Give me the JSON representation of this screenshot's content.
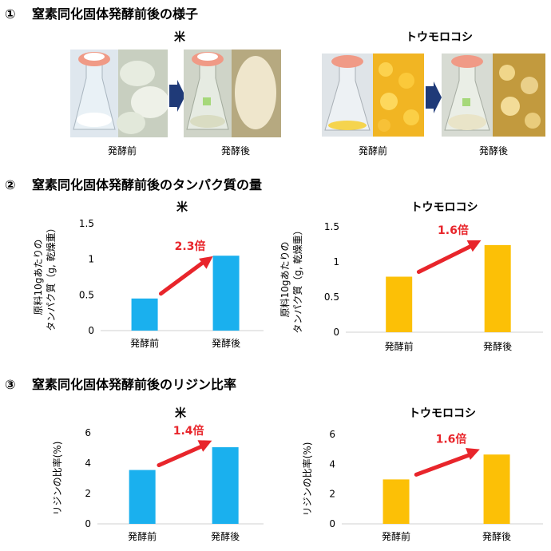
{
  "sections": [
    {
      "num": "①",
      "title": "窒素同化固体発酵前後の様子"
    },
    {
      "num": "②",
      "title": "窒素同化固体発酵前後のタンパク質の量"
    },
    {
      "num": "③",
      "title": "窒素同化固体発酵前後のリジン比率"
    }
  ],
  "photos": {
    "rice_title": "米",
    "corn_title": "トウモロコシ",
    "before_label": "発酵前",
    "after_label": "発酵後"
  },
  "chart_data": [
    {
      "id": "protein-rice",
      "type": "bar",
      "title": "米",
      "categories": [
        "発酵前",
        "発酵後"
      ],
      "values": [
        0.45,
        1.05
      ],
      "ylabel_lines": [
        "原料10gあたりの",
        "タンパク質（g, 乾燥重）"
      ],
      "ylim": [
        0,
        1.5
      ],
      "yticks": [
        "0",
        "0.5",
        "1",
        "1.5"
      ],
      "ytick_values": [
        0,
        0.5,
        1,
        1.5
      ],
      "annotation": "2.3倍",
      "color": "#1ab0ee"
    },
    {
      "id": "protein-corn",
      "type": "bar",
      "title": "トウモロコシ",
      "categories": [
        "発酵前",
        "発酵後"
      ],
      "values": [
        0.79,
        1.24
      ],
      "ylabel_lines": [
        "原料10gあたりの",
        "タンパク質（g, 乾燥重）"
      ],
      "ylim": [
        0,
        1.5
      ],
      "yticks": [
        "0",
        "0.5",
        "1",
        "1.5"
      ],
      "ytick_values": [
        0,
        0.5,
        1,
        1.5
      ],
      "annotation": "1.6倍",
      "color": "#fcc006"
    },
    {
      "id": "lysine-rice",
      "type": "bar",
      "title": "米",
      "categories": [
        "発酵前",
        "発酵後"
      ],
      "values": [
        3.55,
        5.05
      ],
      "ylabel_lines": [
        "リジンの比率(%)"
      ],
      "ylim": [
        0,
        6
      ],
      "yticks": [
        "0",
        "2",
        "4",
        "6"
      ],
      "ytick_values": [
        0,
        2,
        4,
        6
      ],
      "annotation": "1.4倍",
      "color": "#1ab0ee"
    },
    {
      "id": "lysine-corn",
      "type": "bar",
      "title": "トウモロコシ",
      "categories": [
        "発酵前",
        "発酵後"
      ],
      "values": [
        2.98,
        4.65
      ],
      "ylabel_lines": [
        "リジンの比率(%)"
      ],
      "ylim": [
        0,
        6
      ],
      "yticks": [
        "0",
        "2",
        "4",
        "6"
      ],
      "ytick_values": [
        0,
        2,
        4,
        6
      ],
      "annotation": "1.6倍",
      "color": "#fcc006"
    }
  ],
  "colors": {
    "accent_red": "#e8252b",
    "arrow_navy": "#1f3a78",
    "axis": "#d0d0d0"
  }
}
